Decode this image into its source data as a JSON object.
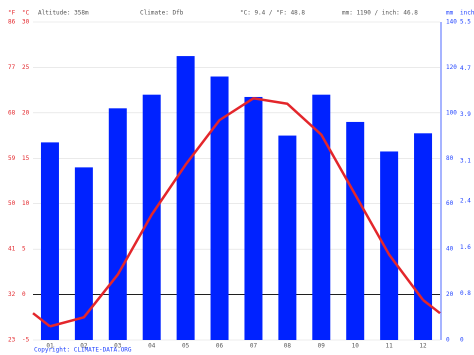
{
  "chart_data": {
    "type": "bar-line",
    "header": [
      "Altitude: 358m",
      "Climate: Dfb",
      "°C: 9.4 / °F: 48.8",
      "mm: 1190 / inch: 46.8"
    ],
    "unit_f": "°F",
    "unit_c": "°C",
    "unit_mm": "mm",
    "unit_inch": "inch",
    "copyright": "Copyright: CLIMATE-DATA.ORG",
    "categories": [
      "01",
      "02",
      "03",
      "04",
      "05",
      "06",
      "07",
      "08",
      "09",
      "10",
      "11",
      "12"
    ],
    "series": [
      {
        "name": "Precipitation",
        "type": "bar",
        "axis": "y2",
        "color": "#0022ff",
        "values": [
          87,
          76,
          102,
          108,
          125,
          116,
          107,
          90,
          108,
          96,
          83,
          91
        ]
      },
      {
        "name": "Temperature",
        "type": "line",
        "color": "#e3262b",
        "values": [
          -3.5,
          -2.5,
          2.2,
          8.8,
          14.3,
          19.2,
          21.6,
          21.0,
          17.6,
          11.0,
          4.4,
          -0.6
        ]
      }
    ],
    "ylim": [
      -5,
      30
    ],
    "yticks": [
      -5,
      0,
      5,
      10,
      15,
      20,
      25,
      30
    ],
    "flim": [
      23,
      86
    ],
    "fticks": [
      23,
      32,
      41,
      50,
      59,
      68,
      77,
      86
    ],
    "y2lim": [
      0,
      140
    ],
    "y2ticks": [
      0,
      20,
      40,
      60,
      80,
      100,
      120,
      140
    ],
    "inchlim": [
      0,
      5.5
    ],
    "inchticks": [
      0.0,
      0.8,
      1.6,
      2.4,
      3.1,
      3.9,
      4.7,
      5.5
    ],
    "grid": true
  }
}
